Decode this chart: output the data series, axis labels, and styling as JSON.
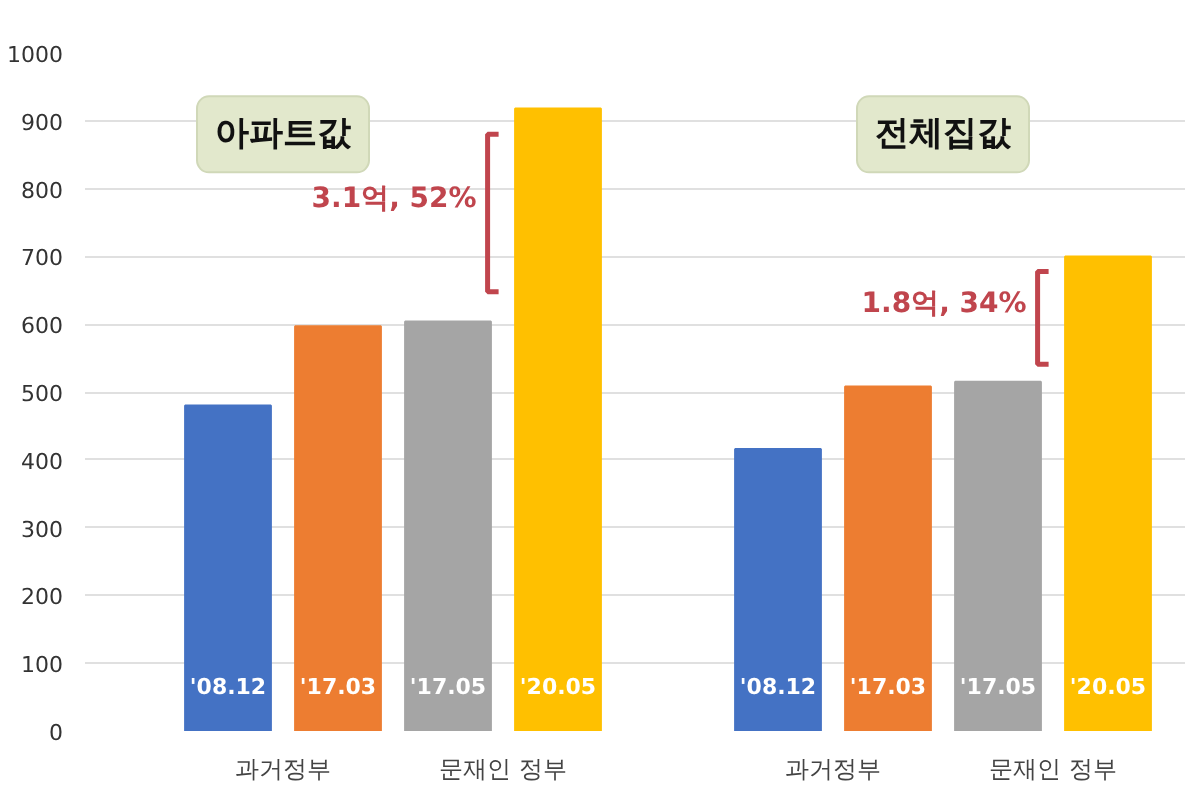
{
  "chart_data": {
    "type": "bar",
    "categories": [
      "'08.12",
      "'17.03",
      "'17.05",
      "'20.05",
      null,
      "'08.12",
      "'17.03",
      "'17.05",
      "'20.05"
    ],
    "values": [
      480,
      597,
      604,
      918,
      null,
      416,
      508,
      515,
      700
    ],
    "colors": [
      "#4472c4",
      "#ed7d31",
      "#a5a5a5",
      "#ffc000",
      "#ffffff",
      "#4472c4",
      "#ed7d31",
      "#a5a5a5",
      "#ffc000"
    ],
    "ylim": [
      0,
      1000
    ],
    "yticks": [
      0,
      100,
      200,
      300,
      400,
      500,
      600,
      700,
      800,
      900,
      1000
    ],
    "grid": "y",
    "tick_labels": "y",
    "annotations": [
      "아파트값",
      "전체집값",
      "3.1억, 52%",
      "1.8억, 34%",
      "과거정부",
      "문재인 정부",
      "과거정부",
      "문재인 정부"
    ]
  }
}
